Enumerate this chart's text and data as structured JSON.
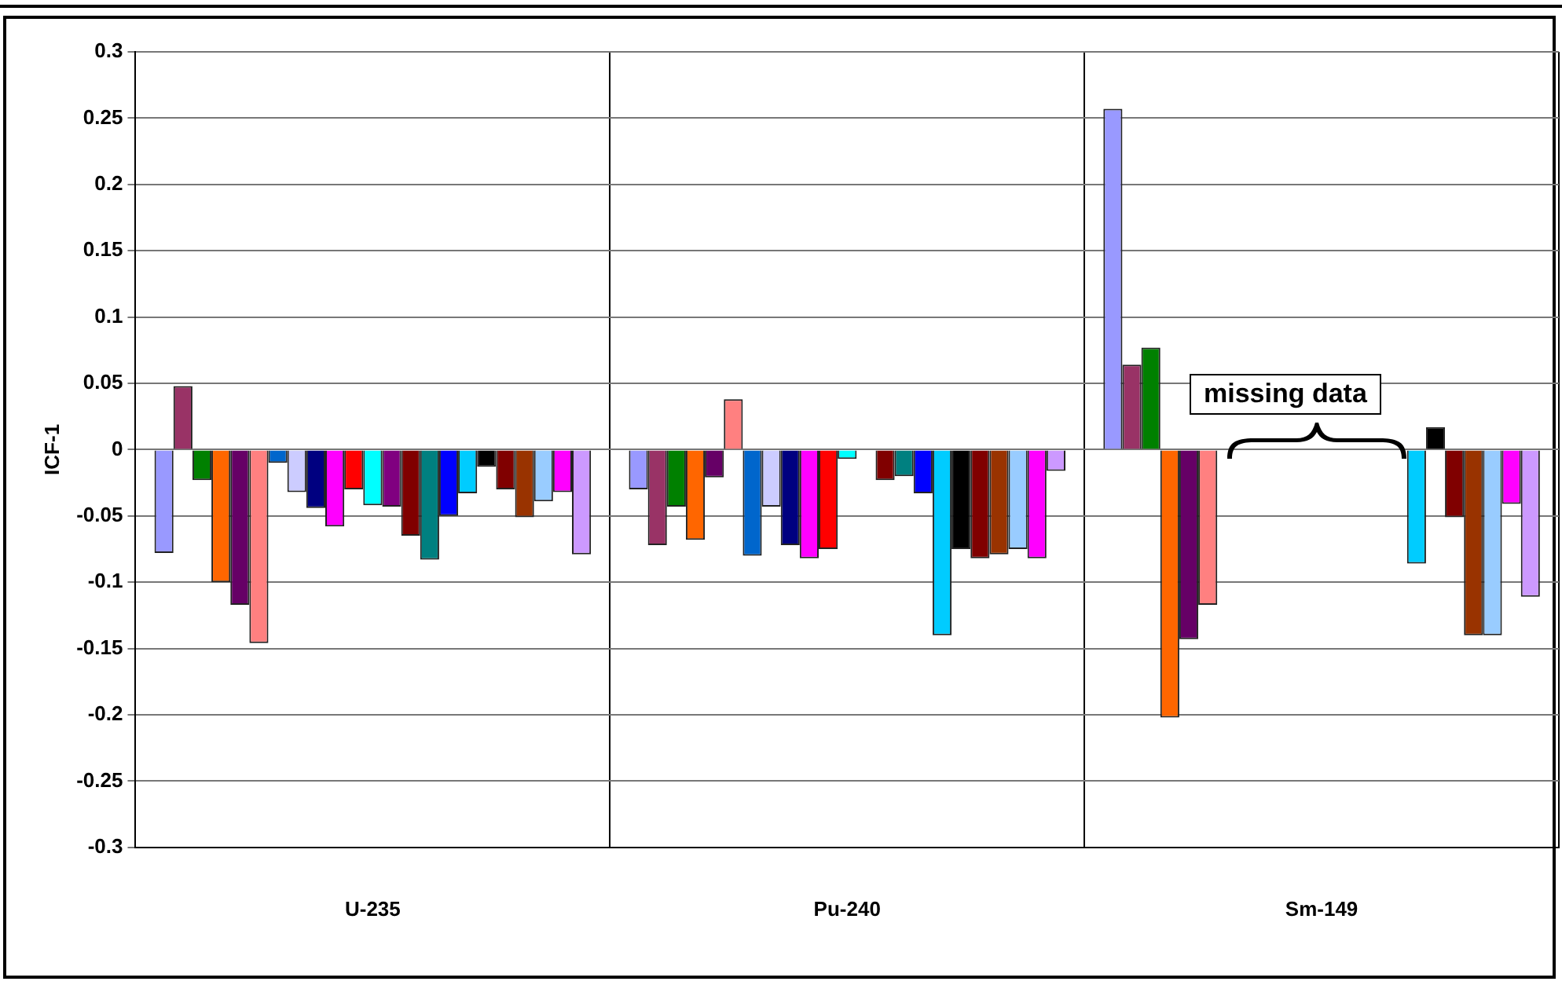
{
  "chart_data": {
    "type": "bar",
    "ylabel": "ICF-1",
    "categories": [
      "U-235",
      "Pu-240",
      "Sm-149"
    ],
    "series": [
      {
        "color": "#9999ff",
        "values": [
          -0.078,
          -0.03,
          0.257
        ]
      },
      {
        "color": "#993366",
        "values": [
          0.048,
          -0.072,
          0.064
        ]
      },
      {
        "color": "#008000",
        "values": [
          -0.023,
          -0.043,
          0.077
        ]
      },
      {
        "color": "#ff6600",
        "values": [
          -0.1,
          -0.068,
          -0.202
        ]
      },
      {
        "color": "#660066",
        "values": [
          -0.117,
          -0.021,
          -0.143
        ]
      },
      {
        "color": "#ff8080",
        "values": [
          -0.146,
          0.038,
          -0.117
        ]
      },
      {
        "color": "#0066cc",
        "values": [
          -0.01,
          -0.08,
          null
        ]
      },
      {
        "color": "#ccccff",
        "values": [
          -0.032,
          -0.043,
          null
        ]
      },
      {
        "color": "#000080",
        "values": [
          -0.044,
          -0.072,
          null
        ]
      },
      {
        "color": "#ff00ff",
        "values": [
          -0.058,
          -0.082,
          null
        ]
      },
      {
        "color": "#ff0000",
        "values": [
          -0.03,
          -0.075,
          null
        ]
      },
      {
        "color": "#00ffff",
        "values": [
          -0.042,
          -0.007,
          null
        ]
      },
      {
        "color": "#800080",
        "values": [
          -0.043,
          null,
          null
        ]
      },
      {
        "color": "#800000",
        "values": [
          -0.065,
          -0.023,
          null
        ]
      },
      {
        "color": "#008080",
        "values": [
          -0.083,
          -0.02,
          null
        ]
      },
      {
        "color": "#0000ff",
        "values": [
          -0.05,
          -0.033,
          null
        ]
      },
      {
        "color": "#00ccff",
        "values": [
          -0.033,
          -0.14,
          -0.086
        ]
      },
      {
        "color": "#000000",
        "values": [
          -0.013,
          -0.075,
          0.017
        ]
      },
      {
        "color": "#800000",
        "values": [
          -0.03,
          -0.082,
          -0.051
        ]
      },
      {
        "color": "#993300",
        "values": [
          -0.051,
          -0.079,
          -0.14
        ]
      },
      {
        "color": "#99ccff",
        "values": [
          -0.039,
          -0.075,
          -0.14
        ]
      },
      {
        "color": "#ff00ff",
        "values": [
          -0.032,
          -0.082,
          -0.041
        ]
      },
      {
        "color": "#cc99ff",
        "values": [
          -0.079,
          -0.016,
          -0.111
        ]
      }
    ],
    "ylim": [
      -0.3,
      0.3
    ],
    "yticks": [
      -0.3,
      -0.25,
      -0.2,
      -0.15,
      -0.1,
      -0.05,
      0,
      0.05,
      0.1,
      0.15,
      0.2,
      0.25,
      0.3
    ],
    "grid": true,
    "legend": false,
    "annotations": [
      "missing data"
    ]
  }
}
